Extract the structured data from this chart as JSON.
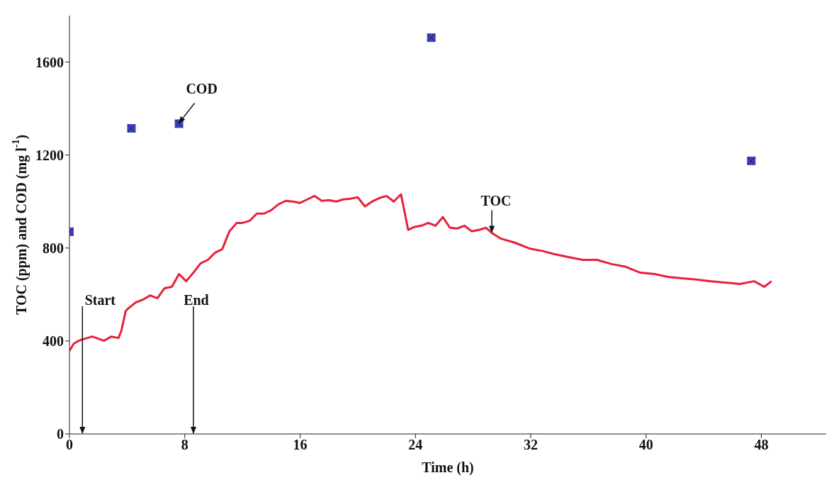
{
  "chart_data": {
    "type": "line",
    "xlabel": "Time (h)",
    "ylabel": "TOC (ppm) and COD (mg l$^{-1}$)",
    "xlim": [
      0,
      52.5
    ],
    "xticks": [
      0,
      8,
      16,
      24,
      32,
      40,
      48
    ],
    "ylim": [
      0,
      1800
    ],
    "yticks": [
      0,
      400,
      800,
      1200,
      1600
    ],
    "grid": false,
    "ref_lines": [
      {
        "axis": "x",
        "value": 0.9,
        "label": "Start"
      },
      {
        "axis": "x",
        "value": 8.6,
        "label": "End"
      }
    ],
    "series": [
      {
        "type": "scatter",
        "marker": "square",
        "color": "#4040c8",
        "x": [
          0,
          4.3,
          7.6,
          25.1,
          47.3
        ],
        "values": [
          870,
          1315,
          1335,
          1705,
          1175
        ]
      },
      {
        "type": "line",
        "marker": "none",
        "line_style": "solid",
        "color": "#e8203a",
        "x": [
          0,
          0.3,
          0.6,
          0.9,
          1.6,
          2.4,
          2.9,
          3.4,
          3.6,
          3.9,
          4.1,
          4.6,
          5.1,
          5.6,
          6.1,
          6.6,
          7.1,
          7.6,
          8.1,
          8.6,
          9.1,
          9.6,
          10.1,
          10.6,
          11.1,
          11.6,
          12.0,
          12.5,
          13.0,
          13.5,
          14.0,
          14.5,
          15.0,
          15.5,
          16.0,
          16.5,
          17.0,
          17.5,
          18.0,
          18.5,
          19.0,
          19.5,
          20.0,
          20.5,
          21.0,
          21.5,
          22.0,
          22.5,
          23.0,
          23.5,
          23.9,
          24.4,
          24.9,
          25.4,
          25.9,
          26.4,
          26.9,
          27.4,
          27.9,
          28.4,
          28.9,
          29.3,
          29.9,
          30.9,
          31.9,
          32.9,
          33.6,
          34.6,
          35.6,
          36.6,
          37.6,
          38.6,
          39.6,
          40.6,
          41.5,
          42.5,
          43.5,
          44.5,
          45.5,
          46.5,
          47.5,
          48.2,
          48.7
        ],
        "values": [
          358,
          388,
          400,
          407,
          419,
          401,
          419,
          413,
          443,
          529,
          541,
          566,
          578,
          596,
          584,
          627,
          633,
          688,
          657,
          694,
          734,
          749,
          780,
          795,
          872,
          908,
          908,
          917,
          948,
          948,
          963,
          988,
          1003,
          1000,
          994,
          1009,
          1024,
          1003,
          1006,
          1000,
          1009,
          1012,
          1018,
          979,
          1000,
          1015,
          1024,
          1000,
          1031,
          878,
          890,
          896,
          908,
          896,
          933,
          887,
          884,
          896,
          872,
          878,
          887,
          865,
          841,
          823,
          798,
          786,
          774,
          761,
          749,
          749,
          731,
          719,
          694,
          688,
          676,
          670,
          664,
          657,
          651,
          645,
          657,
          633,
          657
        ]
      }
    ],
    "annotations": [
      {
        "text": "COD",
        "x": 7.6,
        "y": 1335
      },
      {
        "text": "TOC",
        "x": 29.3,
        "y": 865
      }
    ]
  }
}
